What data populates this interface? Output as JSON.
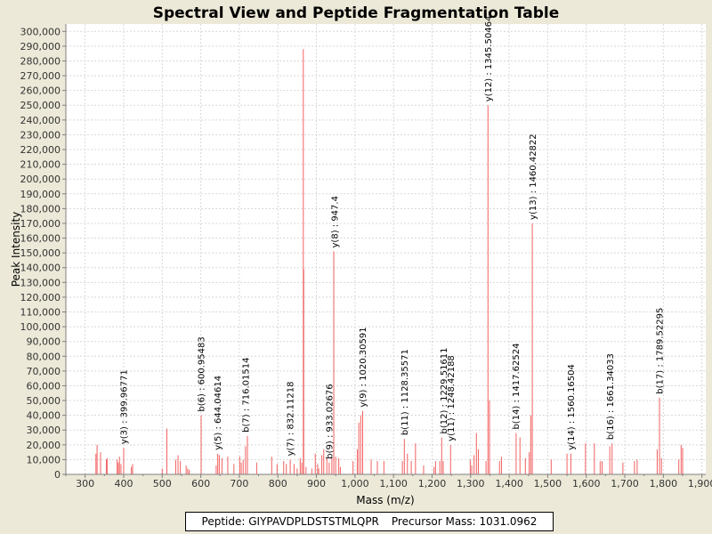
{
  "chart_data": {
    "type": "bar",
    "title": "Spectral View and Peptide Fragmentation Table",
    "xlabel": "Mass (m/z)",
    "ylabel": "Peak Intensity",
    "xlim": [
      250,
      1910
    ],
    "ylim": [
      0,
      305000
    ],
    "x_ticks": [
      300,
      400,
      500,
      600,
      700,
      800,
      900,
      1000,
      1100,
      1200,
      1300,
      1400,
      1500,
      1600,
      1700,
      1800,
      1900
    ],
    "x_tick_labels": [
      "300",
      "400",
      "500",
      "600",
      "700",
      "800",
      "900",
      "1,000",
      "1,100",
      "1,200",
      "1,300",
      "1,400",
      "1,500",
      "1,600",
      "1,700",
      "1,800",
      "1,900"
    ],
    "y_ticks": [
      0,
      10000,
      20000,
      30000,
      40000,
      50000,
      60000,
      70000,
      80000,
      90000,
      100000,
      110000,
      120000,
      130000,
      140000,
      150000,
      160000,
      170000,
      180000,
      190000,
      200000,
      210000,
      220000,
      230000,
      240000,
      250000,
      260000,
      270000,
      280000,
      290000,
      300000
    ],
    "y_tick_labels": [
      "0",
      "10,000",
      "20,000",
      "30,000",
      "40,000",
      "50,000",
      "60,000",
      "70,000",
      "80,000",
      "90,000",
      "100,000",
      "110,000",
      "120,000",
      "130,000",
      "140,000",
      "150,000",
      "160,000",
      "170,000",
      "180,000",
      "190,000",
      "200,000",
      "210,000",
      "220,000",
      "230,000",
      "240,000",
      "250,000",
      "260,000",
      "270,000",
      "280,000",
      "290,000",
      "300,000"
    ],
    "grid": true,
    "peak_color": "#F26060",
    "peaks": [
      [
        328,
        14000
      ],
      [
        331,
        20000
      ],
      [
        340,
        15000
      ],
      [
        355,
        10000
      ],
      [
        357,
        11000
      ],
      [
        383,
        10000
      ],
      [
        386,
        8000
      ],
      [
        389,
        12000
      ],
      [
        393,
        7000
      ],
      [
        400,
        18000
      ],
      [
        420,
        5000
      ],
      [
        423,
        7000
      ],
      [
        500,
        4000
      ],
      [
        512,
        31000
      ],
      [
        535,
        10000
      ],
      [
        541,
        13000
      ],
      [
        547,
        9000
      ],
      [
        562,
        6000
      ],
      [
        566,
        4000
      ],
      [
        570,
        3000
      ],
      [
        601,
        40000
      ],
      [
        640,
        6000
      ],
      [
        644,
        14000
      ],
      [
        648,
        13000
      ],
      [
        655,
        11000
      ],
      [
        670,
        12000
      ],
      [
        686,
        7000
      ],
      [
        701,
        12000
      ],
      [
        705,
        8000
      ],
      [
        710,
        10000
      ],
      [
        716,
        19000
      ],
      [
        721,
        26000
      ],
      [
        745,
        8000
      ],
      [
        784,
        12000
      ],
      [
        798,
        7000
      ],
      [
        815,
        9000
      ],
      [
        822,
        7000
      ],
      [
        832,
        10000
      ],
      [
        842,
        7000
      ],
      [
        850,
        4000
      ],
      [
        858,
        11000
      ],
      [
        862,
        8000
      ],
      [
        866,
        288000
      ],
      [
        867,
        139000
      ],
      [
        873,
        5000
      ],
      [
        888,
        4000
      ],
      [
        897,
        14000
      ],
      [
        903,
        7000
      ],
      [
        906,
        4000
      ],
      [
        914,
        13000
      ],
      [
        919,
        17000
      ],
      [
        927,
        11000
      ],
      [
        933,
        8000
      ],
      [
        940,
        11000
      ],
      [
        945,
        151000
      ],
      [
        950,
        12000
      ],
      [
        958,
        11000
      ],
      [
        962,
        5000
      ],
      [
        995,
        9000
      ],
      [
        1006,
        17000
      ],
      [
        1010,
        35000
      ],
      [
        1015,
        40000
      ],
      [
        1020,
        43000
      ],
      [
        1042,
        10000
      ],
      [
        1058,
        9000
      ],
      [
        1075,
        9000
      ],
      [
        1123,
        9000
      ],
      [
        1128,
        24000
      ],
      [
        1136,
        14000
      ],
      [
        1146,
        9000
      ],
      [
        1157,
        21000
      ],
      [
        1178,
        6000
      ],
      [
        1205,
        5000
      ],
      [
        1209,
        9000
      ],
      [
        1220,
        9000
      ],
      [
        1225,
        25000
      ],
      [
        1229,
        9000
      ],
      [
        1248,
        20000
      ],
      [
        1299,
        10000
      ],
      [
        1303,
        6000
      ],
      [
        1309,
        13000
      ],
      [
        1315,
        28000
      ],
      [
        1320,
        17000
      ],
      [
        1340,
        9000
      ],
      [
        1345,
        250000
      ],
      [
        1349,
        50000
      ],
      [
        1375,
        9000
      ],
      [
        1380,
        12000
      ],
      [
        1418,
        28000
      ],
      [
        1428,
        25000
      ],
      [
        1442,
        11000
      ],
      [
        1452,
        15000
      ],
      [
        1456,
        40000
      ],
      [
        1460,
        170000
      ],
      [
        1509,
        10000
      ],
      [
        1550,
        14000
      ],
      [
        1560,
        14000
      ],
      [
        1598,
        21000
      ],
      [
        1621,
        21000
      ],
      [
        1636,
        9000
      ],
      [
        1641,
        9000
      ],
      [
        1661,
        19000
      ],
      [
        1667,
        21000
      ],
      [
        1695,
        8000
      ],
      [
        1725,
        9000
      ],
      [
        1732,
        10000
      ],
      [
        1784,
        17000
      ],
      [
        1790,
        52000
      ],
      [
        1795,
        11000
      ],
      [
        1840,
        10000
      ],
      [
        1846,
        20000
      ],
      [
        1850,
        18000
      ]
    ],
    "annotations": [
      {
        "x": 399.96771,
        "label": "y(3) : 399.96771"
      },
      {
        "x": 600.95483,
        "label": "b(6) : 600.95483"
      },
      {
        "x": 644.04614,
        "label": "y(5) : 644.04614"
      },
      {
        "x": 716.01514,
        "label": "b(7) : 716.01514"
      },
      {
        "x": 832.11218,
        "label": "y(7) : 832.11218"
      },
      {
        "x": 933.02676,
        "label": "b(9) : 933.02676"
      },
      {
        "x": 947.4,
        "label": "y(8) : 947.4"
      },
      {
        "x": 1020.30591,
        "label": "y(9) : 1020.30591"
      },
      {
        "x": 1128.35571,
        "label": "b(11) : 1128.35571"
      },
      {
        "x": 1229.51611,
        "label": "b(12) : 1229.51611"
      },
      {
        "x": 1248.42188,
        "label": "y(11) : 1248.42188"
      },
      {
        "x": 1345.50464,
        "label": "y(12) : 1345.50464"
      },
      {
        "x": 1417.62524,
        "label": "b(14) : 1417.62524"
      },
      {
        "x": 1460.42822,
        "label": "y(13) : 1460.42822"
      },
      {
        "x": 1560.16504,
        "label": "y(14) : 1560.16504"
      },
      {
        "x": 1661.34033,
        "label": "b(16) : 1661.34033"
      },
      {
        "x": 1789.52295,
        "label": "b(17) : 1789.52295"
      }
    ]
  },
  "info": {
    "peptide_label": "Peptide:",
    "peptide": "GIYPAVDPLDSTSTMLQPR",
    "precursor_label": "Precursor Mass:",
    "precursor": "1031.0962"
  }
}
